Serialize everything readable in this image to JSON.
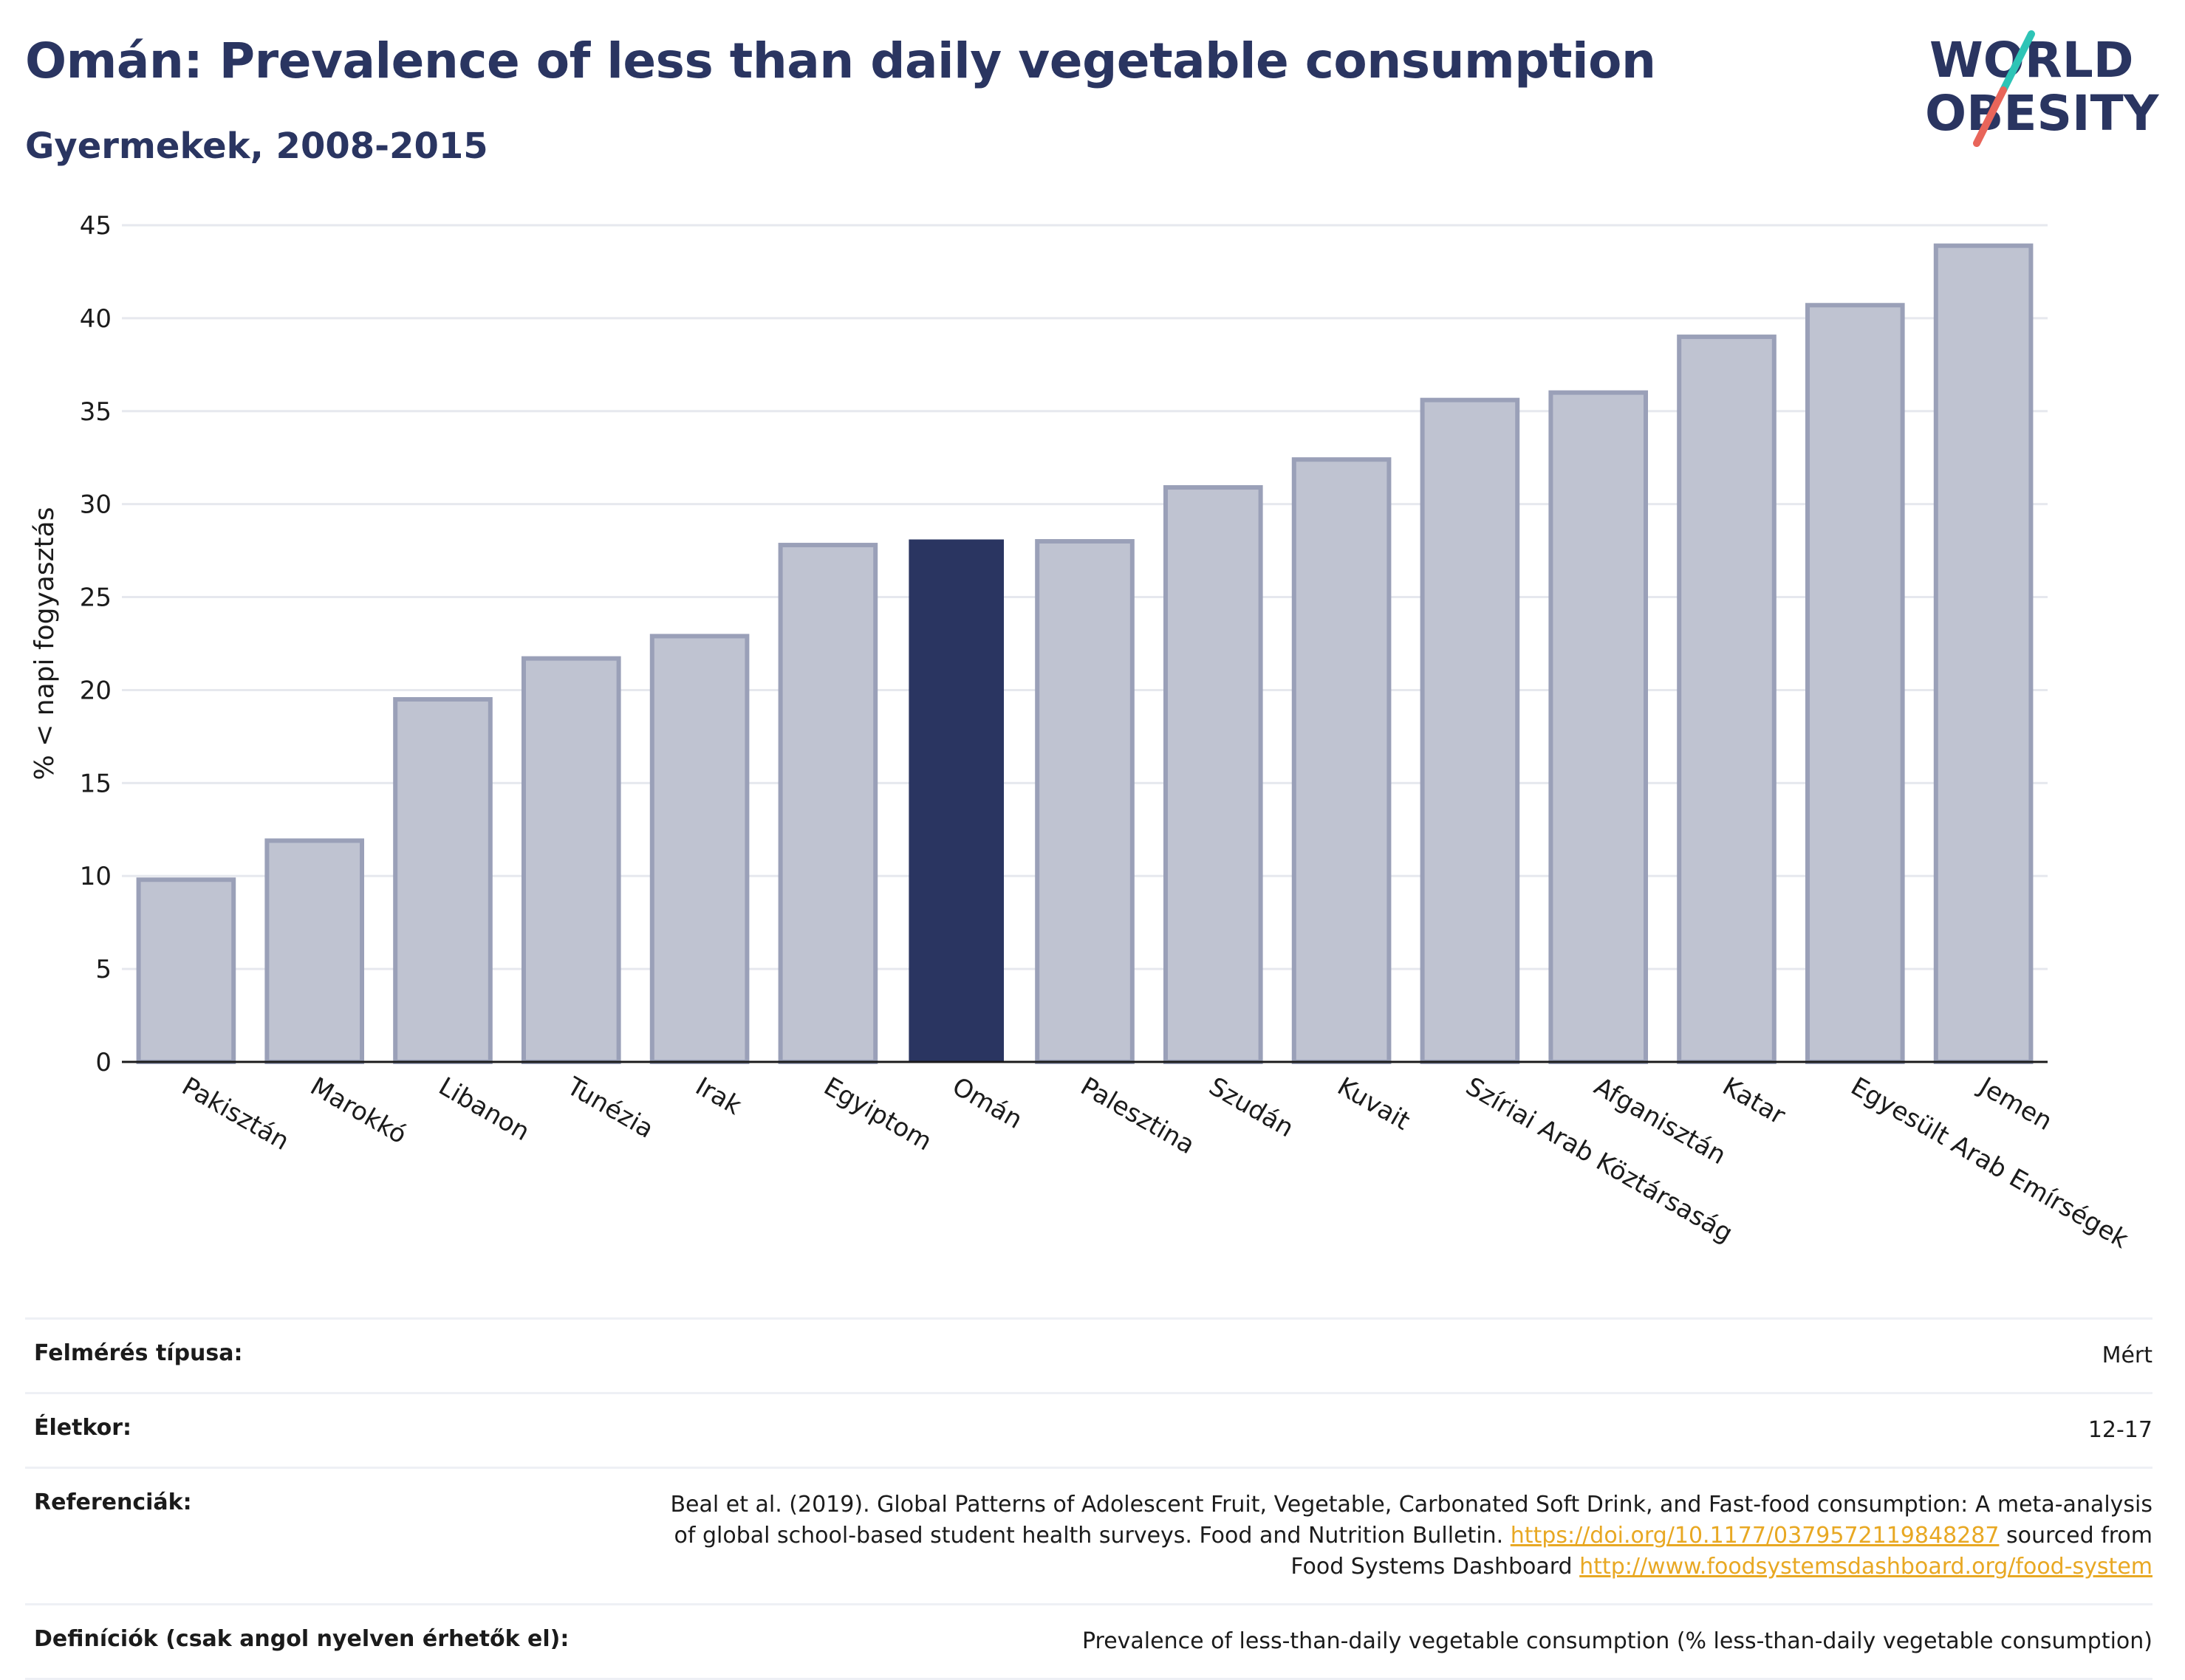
{
  "header": {
    "title": "Omán: Prevalence of less than daily vegetable consumption",
    "subtitle": "Gyermekek, 2008-2015"
  },
  "logo": {
    "line1": "WORLD",
    "line2": "OBESITY",
    "colors": {
      "text": "#2a3561",
      "slash_teal": "#2ec4b6",
      "slash_red": "#e8655a"
    }
  },
  "chart_data": {
    "type": "bar",
    "ylabel": "% < napi fogyasztás",
    "ylim": [
      0,
      45
    ],
    "yticks": [
      0,
      5,
      10,
      15,
      20,
      25,
      30,
      35,
      40,
      45
    ],
    "grid": true,
    "highlight": "Omán",
    "categories": [
      "Pakisztán",
      "Marokkó",
      "Libanon",
      "Tunézia",
      "Irak",
      "Egyiptom",
      "Omán",
      "Palesztina",
      "Szudán",
      "Kuvait",
      "Szíriai Arab Köztársaság",
      "Afganisztán",
      "Katar",
      "Egyesült Arab Emírségek",
      "Jemen"
    ],
    "values": [
      9.8,
      11.9,
      19.5,
      21.7,
      22.9,
      27.8,
      28.1,
      28.0,
      30.9,
      32.4,
      35.6,
      36.0,
      39.0,
      40.7,
      43.9
    ],
    "colors": {
      "bar": "#bfc3d1",
      "bar_edge": "#9aa0b8",
      "highlight": "#2a3561",
      "grid": "#e6e8ee",
      "axis": "#1b1b1b"
    }
  },
  "info": {
    "survey_type_label": "Felmérés típusa:",
    "survey_type_value": "Mért",
    "age_label": "Életkor:",
    "age_value": "12-17",
    "references_label": "Referenciák:",
    "references_text1": "Beal et al. (2019). Global Patterns of Adolescent Fruit, Vegetable, Carbonated Soft Drink, and Fast-food consumption: A meta-analysis",
    "references_text2": "of global school-based student health surveys. Food and Nutrition Bulletin.",
    "references_link1": "https://doi.org/10.1177/0379572119848287",
    "references_text3": "sourced from",
    "references_text4": "Food Systems Dashboard",
    "references_link2": "http://www.foodsystemsdashboard.org/food-system",
    "definitions_label": "Definíciók (csak angol nyelven érhetők el):",
    "definitions_value": "Prevalence of less-than-daily vegetable consumption (% less-than-daily vegetable consumption)"
  }
}
